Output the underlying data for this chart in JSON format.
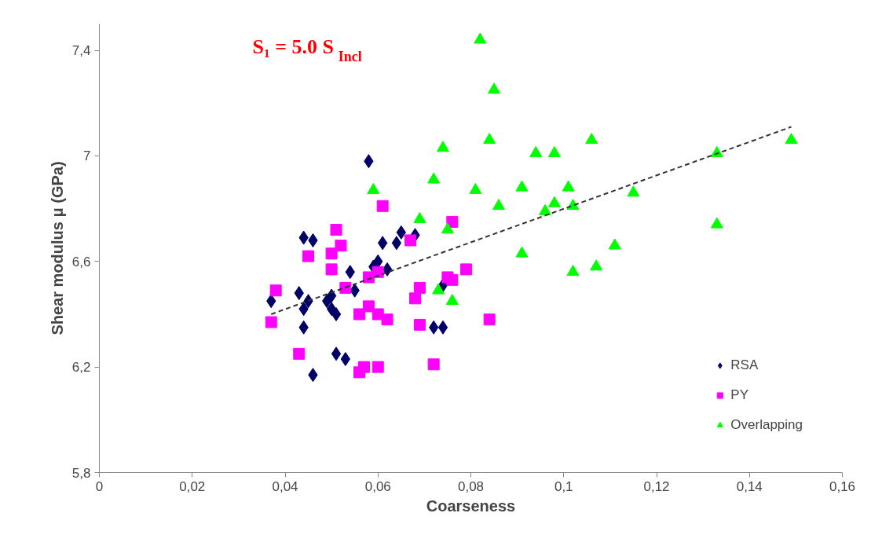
{
  "chart_data": {
    "type": "scatter",
    "title": "S₁ = 5.0 S$_{Incl}$",
    "xlabel": "Coarseness",
    "ylabel": "Shear modulus μ (GPa)",
    "xlim": [
      0,
      0.16
    ],
    "ylim": [
      5.8,
      7.5
    ],
    "xticks": [
      {
        "value": 0,
        "label": "0"
      },
      {
        "value": 0.02,
        "label": "0,02"
      },
      {
        "value": 0.04,
        "label": "0,04"
      },
      {
        "value": 0.06,
        "label": "0,06"
      },
      {
        "value": 0.08,
        "label": "0,08"
      },
      {
        "value": 0.1,
        "label": "0,1"
      },
      {
        "value": 0.12,
        "label": "0,12"
      },
      {
        "value": 0.14,
        "label": "0,14"
      },
      {
        "value": 0.16,
        "label": "0,16"
      }
    ],
    "yticks": [
      {
        "value": 5.8,
        "label": "5,8"
      },
      {
        "value": 6.2,
        "label": "6,2"
      },
      {
        "value": 6.6,
        "label": "6,6"
      },
      {
        "value": 7.0,
        "label": "7"
      },
      {
        "value": 7.4,
        "label": "7,4"
      }
    ],
    "grid": false,
    "legend": "bottom right",
    "series": [
      {
        "name": "RSA",
        "color": "#000066",
        "marker": "diamond",
        "x": [
          0.037,
          0.043,
          0.045,
          0.044,
          0.044,
          0.044,
          0.046,
          0.05,
          0.049,
          0.05,
          0.051,
          0.051,
          0.053,
          0.046,
          0.054,
          0.055,
          0.058,
          0.06,
          0.061,
          0.062,
          0.064,
          0.065,
          0.068,
          0.072,
          0.074,
          0.074,
          0.059
        ],
        "values": [
          6.45,
          6.48,
          6.45,
          6.42,
          6.35,
          6.69,
          6.68,
          6.47,
          6.45,
          6.42,
          6.4,
          6.25,
          6.23,
          6.17,
          6.56,
          6.49,
          6.98,
          6.6,
          6.67,
          6.57,
          6.67,
          6.71,
          6.7,
          6.35,
          6.35,
          6.51,
          6.58
        ]
      },
      {
        "name": "PY",
        "color": "#ff00ff",
        "marker": "square",
        "x": [
          0.038,
          0.037,
          0.045,
          0.051,
          0.052,
          0.05,
          0.05,
          0.043,
          0.053,
          0.056,
          0.058,
          0.06,
          0.062,
          0.058,
          0.06,
          0.061,
          0.056,
          0.057,
          0.06,
          0.067,
          0.069,
          0.068,
          0.069,
          0.072,
          0.076,
          0.075,
          0.076,
          0.079,
          0.084
        ],
        "values": [
          6.49,
          6.37,
          6.62,
          6.72,
          6.66,
          6.63,
          6.57,
          6.25,
          6.5,
          6.4,
          6.43,
          6.4,
          6.38,
          6.54,
          6.56,
          6.81,
          6.18,
          6.2,
          6.2,
          6.68,
          6.5,
          6.46,
          6.36,
          6.21,
          6.75,
          6.54,
          6.53,
          6.57,
          6.38
        ]
      },
      {
        "name": "Overlapping",
        "color": "#00ff00",
        "marker": "triangle",
        "x": [
          0.082,
          0.085,
          0.074,
          0.084,
          0.094,
          0.098,
          0.106,
          0.072,
          0.059,
          0.081,
          0.091,
          0.101,
          0.115,
          0.086,
          0.098,
          0.102,
          0.096,
          0.069,
          0.075,
          0.091,
          0.111,
          0.102,
          0.107,
          0.073,
          0.076,
          0.149,
          0.133,
          0.133
        ],
        "values": [
          7.44,
          7.25,
          7.03,
          7.06,
          7.01,
          7.01,
          7.06,
          6.91,
          6.87,
          6.87,
          6.88,
          6.88,
          6.86,
          6.81,
          6.82,
          6.81,
          6.79,
          6.76,
          6.72,
          6.63,
          6.66,
          6.56,
          6.58,
          6.49,
          6.45,
          7.06,
          7.01,
          6.74
        ]
      },
      {
        "type": "line",
        "color": "#333333",
        "marker": "none",
        "line_style": "dashed",
        "x": [
          0.037,
          0.149
        ],
        "values": [
          6.4,
          7.11
        ]
      }
    ]
  }
}
